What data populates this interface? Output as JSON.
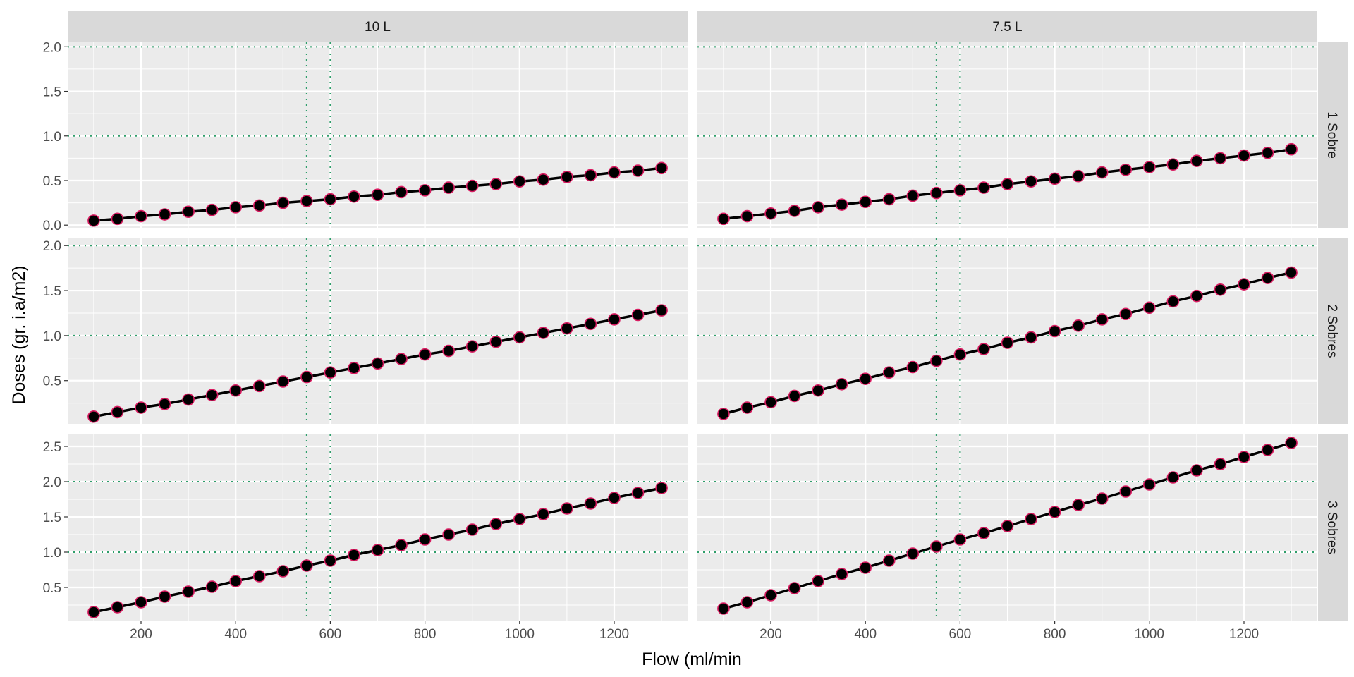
{
  "chart_data": {
    "type": "line",
    "facet_grid": true,
    "xlabel": "Flow (ml/min",
    "ylabel": "Doses (gr. i.a/m2)",
    "col_strips": [
      "10 L",
      "7.5 L"
    ],
    "row_strips": [
      "1 Sobre",
      "2 Sobres",
      "3 Sobres"
    ],
    "x": [
      100,
      150,
      200,
      250,
      300,
      350,
      400,
      450,
      500,
      550,
      600,
      650,
      700,
      750,
      800,
      850,
      900,
      950,
      1000,
      1050,
      1100,
      1150,
      1200,
      1250,
      1300
    ],
    "xlim": [
      45,
      1355
    ],
    "x_ticks": [
      200,
      400,
      600,
      800,
      1000,
      1200
    ],
    "grid": true,
    "reference_lines": {
      "vertical": [
        550,
        600
      ],
      "horizontal": [
        1.0,
        2.0
      ],
      "style": "dotted",
      "color": "#2e9e6a"
    },
    "marker": {
      "fill": "#000000",
      "stroke": "#d81b60"
    },
    "line_color": "#000000",
    "rows": [
      {
        "strip": "1 Sobre",
        "ylim": [
          -0.03,
          2.05
        ],
        "y_ticks": [
          "0.0",
          "0.5",
          "1.0",
          "1.5",
          "2.0"
        ],
        "panels": [
          {
            "col": "10 L",
            "y": [
              0.05,
              0.07,
              0.1,
              0.12,
              0.15,
              0.17,
              0.2,
              0.22,
              0.25,
              0.27,
              0.29,
              0.32,
              0.34,
              0.37,
              0.39,
              0.42,
              0.44,
              0.46,
              0.49,
              0.51,
              0.54,
              0.56,
              0.59,
              0.61,
              0.64
            ]
          },
          {
            "col": "7.5 L",
            "y": [
              0.07,
              0.1,
              0.13,
              0.16,
              0.2,
              0.23,
              0.26,
              0.29,
              0.33,
              0.36,
              0.39,
              0.42,
              0.46,
              0.49,
              0.52,
              0.55,
              0.59,
              0.62,
              0.65,
              0.68,
              0.72,
              0.75,
              0.78,
              0.81,
              0.85
            ]
          }
        ]
      },
      {
        "strip": "2 Sobres",
        "ylim": [
          0.02,
          2.08
        ],
        "y_ticks": [
          "0.5",
          "1.0",
          "1.5",
          "2.0"
        ],
        "panels": [
          {
            "col": "10 L",
            "y": [
              0.1,
              0.15,
              0.2,
              0.24,
              0.29,
              0.34,
              0.39,
              0.44,
              0.49,
              0.54,
              0.59,
              0.64,
              0.69,
              0.74,
              0.79,
              0.83,
              0.88,
              0.93,
              0.98,
              1.03,
              1.08,
              1.13,
              1.18,
              1.23,
              1.28
            ]
          },
          {
            "col": "7.5 L",
            "y": [
              0.13,
              0.2,
              0.26,
              0.33,
              0.39,
              0.46,
              0.52,
              0.59,
              0.65,
              0.72,
              0.79,
              0.85,
              0.92,
              0.98,
              1.05,
              1.11,
              1.18,
              1.24,
              1.31,
              1.38,
              1.44,
              1.51,
              1.57,
              1.64,
              1.7
            ]
          }
        ]
      },
      {
        "strip": "3 Sobres",
        "ylim": [
          0.03,
          2.67
        ],
        "y_ticks": [
          "0.5",
          "1.0",
          "1.5",
          "2.0",
          "2.5"
        ],
        "panels": [
          {
            "col": "10 L",
            "y": [
              0.15,
              0.22,
              0.29,
              0.37,
              0.44,
              0.51,
              0.59,
              0.66,
              0.73,
              0.81,
              0.88,
              0.96,
              1.03,
              1.1,
              1.18,
              1.25,
              1.32,
              1.4,
              1.47,
              1.54,
              1.62,
              1.69,
              1.77,
              1.84,
              1.91
            ]
          },
          {
            "col": "7.5 L",
            "y": [
              0.2,
              0.29,
              0.39,
              0.49,
              0.59,
              0.69,
              0.78,
              0.88,
              0.98,
              1.08,
              1.18,
              1.27,
              1.37,
              1.47,
              1.57,
              1.67,
              1.76,
              1.86,
              1.96,
              2.06,
              2.16,
              2.25,
              2.35,
              2.45,
              2.55
            ]
          }
        ]
      }
    ]
  }
}
